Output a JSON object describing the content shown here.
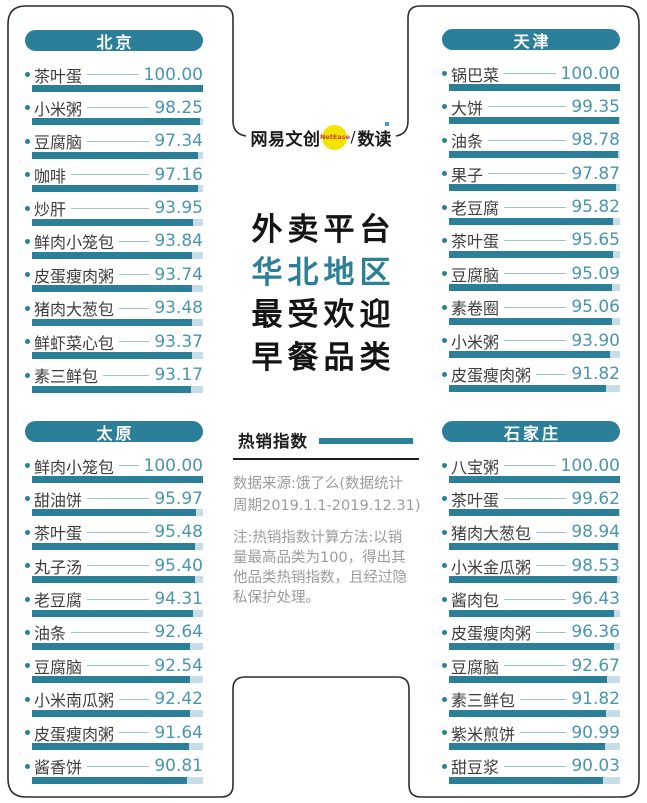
{
  "logo": {
    "brand": "网易文创",
    "badge": "NetEase",
    "separator": "/",
    "sub": "数读"
  },
  "title": {
    "lines": [
      "外卖平台",
      "华北地区",
      "最受欢迎",
      "早餐品类"
    ],
    "accent_line_index": 1
  },
  "legend": {
    "label": "热销指数"
  },
  "source": {
    "lines": [
      "数据来源:饿了么(数据统计",
      "周期2019.1.1-2019.12.31)"
    ]
  },
  "note": {
    "lines": [
      "注:热销指数计算方法:以销",
      "量最高品类为100，得出其",
      "他品类热销指数，且经过隐",
      "私保护处理。"
    ]
  },
  "colors": {
    "teal": "#2b7f98",
    "value_text": "#4a96b0",
    "bar_track": "#c6dde7",
    "leader_line": "#9cc3d2",
    "label_text": "#3d3d3d",
    "frame": "#2d2d2d",
    "muted_text": "#9b9b9b",
    "title_text": "#141414",
    "logo_yellow": "#f4e300",
    "logo_red": "#c44536",
    "logo_blue": "#3aa0d8"
  },
  "chart_data": {
    "type": "bar",
    "title": "外卖平台华北地区最受欢迎早餐品类",
    "value_label": "热销指数",
    "value_range": [
      0,
      100
    ],
    "panels": [
      {
        "city": "北京",
        "items": [
          {
            "label": "茶叶蛋",
            "value": "100.00"
          },
          {
            "label": "小米粥",
            "value": "98.25"
          },
          {
            "label": "豆腐脑",
            "value": "97.34"
          },
          {
            "label": "咖啡",
            "value": "97.16"
          },
          {
            "label": "炒肝",
            "value": "93.95"
          },
          {
            "label": "鲜肉小笼包",
            "value": "93.84"
          },
          {
            "label": "皮蛋瘦肉粥",
            "value": "93.74"
          },
          {
            "label": "猪肉大葱包",
            "value": "93.48"
          },
          {
            "label": "鲜虾菜心包",
            "value": "93.37"
          },
          {
            "label": "素三鲜包",
            "value": "93.17"
          }
        ]
      },
      {
        "city": "天津",
        "items": [
          {
            "label": "锅巴菜",
            "value": "100.00"
          },
          {
            "label": "大饼",
            "value": "99.35"
          },
          {
            "label": "油条",
            "value": "98.78"
          },
          {
            "label": "果子",
            "value": "97.87"
          },
          {
            "label": "老豆腐",
            "value": "95.82"
          },
          {
            "label": "茶叶蛋",
            "value": "95.65"
          },
          {
            "label": "豆腐脑",
            "value": "95.09"
          },
          {
            "label": "素卷圈",
            "value": "95.06"
          },
          {
            "label": "小米粥",
            "value": "93.90"
          },
          {
            "label": "皮蛋瘦肉粥",
            "value": "91.82"
          }
        ]
      },
      {
        "city": "太原",
        "items": [
          {
            "label": "鲜肉小笼包",
            "value": "100.00"
          },
          {
            "label": "甜油饼",
            "value": "95.97"
          },
          {
            "label": "茶叶蛋",
            "value": "95.48"
          },
          {
            "label": "丸子汤",
            "value": "95.40"
          },
          {
            "label": "老豆腐",
            "value": "94.31"
          },
          {
            "label": "油条",
            "value": "92.64"
          },
          {
            "label": "豆腐脑",
            "value": "92.54"
          },
          {
            "label": "小米南瓜粥",
            "value": "92.42"
          },
          {
            "label": "皮蛋瘦肉粥",
            "value": "91.64"
          },
          {
            "label": "酱香饼",
            "value": "90.81"
          }
        ]
      },
      {
        "city": "石家庄",
        "items": [
          {
            "label": "八宝粥",
            "value": "100.00"
          },
          {
            "label": "茶叶蛋",
            "value": "99.62"
          },
          {
            "label": "猪肉大葱包",
            "value": "98.94"
          },
          {
            "label": "小米金瓜粥",
            "value": "98.53"
          },
          {
            "label": "酱肉包",
            "value": "96.43"
          },
          {
            "label": "皮蛋瘦肉粥",
            "value": "96.36"
          },
          {
            "label": "豆腐脑",
            "value": "92.67"
          },
          {
            "label": "素三鲜包",
            "value": "91.82"
          },
          {
            "label": "紫米煎饼",
            "value": "90.99"
          },
          {
            "label": "甜豆浆",
            "value": "90.03"
          }
        ]
      }
    ]
  }
}
